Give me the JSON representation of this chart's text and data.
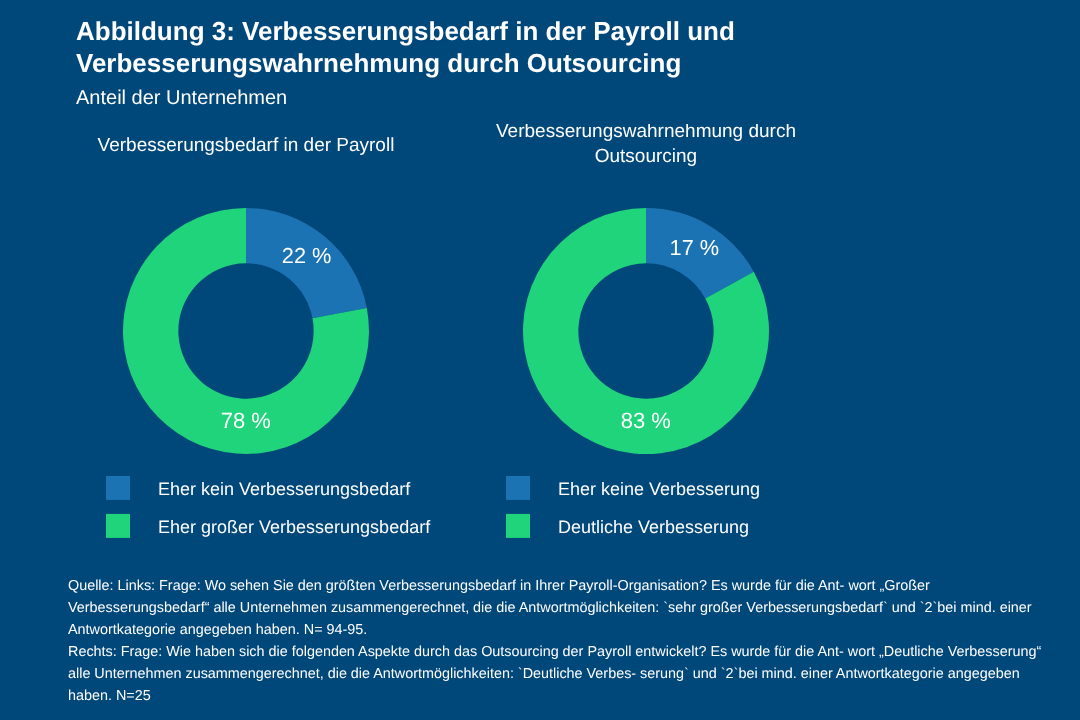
{
  "chart_data": [
    {
      "type": "other",
      "title": "Abbildung 3: Verbesserungsbedarf in der Payroll und Verbesserungswahrnehmung durch Outsourcing",
      "subtitle": "Anteil der Unternehmen",
      "annotations": [
        "Quelle: Links: Frage: Wo sehen Sie den größten Verbesserungsbedarf in Ihrer Payroll-Organisation? Es wurde für die Ant- wort „Großer Verbesserungsbedarf“ alle Unternehmen zusammengerechnet, die die Antwortmöglichkeiten: `sehr großer Verbesserungsbedarf` und `2`bei mind. einer Antwortkategorie angegeben haben. N= 94-95.",
        "Rechts: Frage: Wie haben sich die folgenden Aspekte durch das Outsourcing der Payroll entwickelt? Es wurde für die Ant- wort „Deutliche Verbesserung“ alle Unternehmen zusammengerechnet, die die Antwortmöglichkeiten: `Deutliche Verbes- serung` und `2`bei mind. einer Antwortkategorie angegeben haben. N=25"
      ]
    },
    {
      "type": "donut",
      "title": "Verbesserungsbedarf in der Payroll",
      "categories": [
        "Eher kein Verbesserungsbedarf",
        "Eher großer Verbesserungsbedarf"
      ],
      "values": [
        22,
        78
      ],
      "value_labels": [
        "22 %",
        "78 %"
      ],
      "colors": [
        "#1b73b3",
        "#1fd47a"
      ],
      "legend": "bottom"
    },
    {
      "type": "donut",
      "title": "Verbesserungswahrnehmung durch Outsourcing",
      "categories": [
        "Eher keine Verbesserung",
        "Deutliche Verbesserung"
      ],
      "values": [
        17,
        83
      ],
      "value_labels": [
        "17 %",
        "83 %"
      ],
      "colors": [
        "#1b73b3",
        "#1fd47a"
      ],
      "legend": "bottom"
    }
  ]
}
